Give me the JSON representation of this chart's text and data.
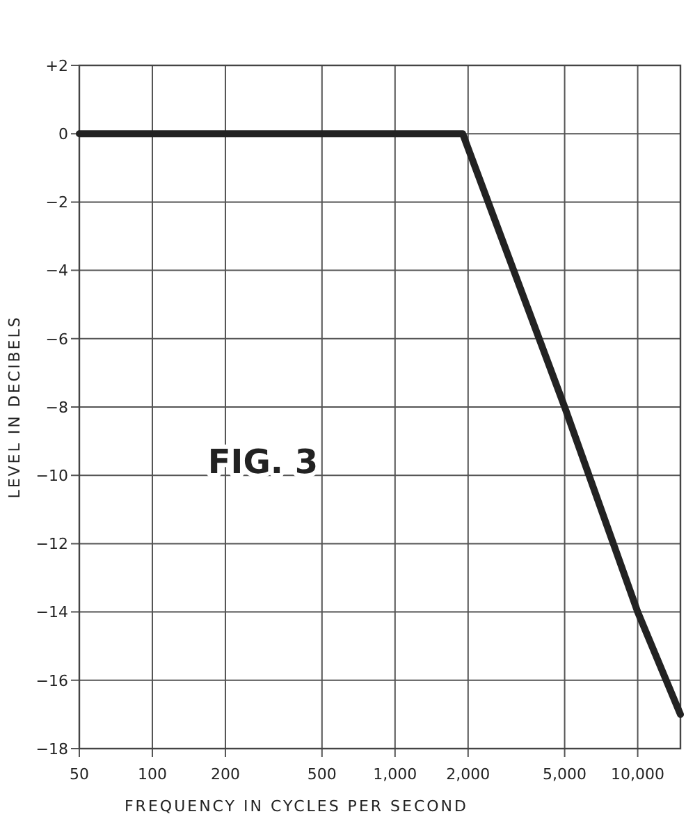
{
  "chart_data": {
    "type": "line",
    "xlabel": "FREQUENCY IN CYCLES PER SECOND",
    "ylabel": "LEVEL IN DECIBELS",
    "annotations": [
      "FIG. 3"
    ],
    "log": "x",
    "grid": true,
    "marker": "none",
    "line_style": "solid",
    "xlim": [
      50,
      15000
    ],
    "ylim": [
      -18,
      2
    ],
    "xticks": [
      50,
      100,
      200,
      500,
      {
        "value": 1000,
        "label": "1,000"
      },
      {
        "value": 2000,
        "label": "2,000"
      },
      {
        "value": 5000,
        "label": "5,000"
      },
      {
        "value": 10000,
        "label": "10,000"
      }
    ],
    "yticks": [
      {
        "value": 2,
        "label": "+2"
      },
      0,
      {
        "value": -2,
        "label": "−2"
      },
      {
        "value": -4,
        "label": "−4"
      },
      {
        "value": -6,
        "label": "−6"
      },
      {
        "value": -8,
        "label": "−8"
      },
      {
        "value": -10,
        "label": "−10"
      },
      {
        "value": -12,
        "label": "−12"
      },
      {
        "value": -14,
        "label": "−14"
      },
      {
        "value": -16,
        "label": "−16"
      },
      {
        "value": -18,
        "label": "−18"
      }
    ],
    "series": [
      {
        "color": "#222222",
        "x": [
          50,
          1900,
          5000,
          10000,
          15000
        ],
        "values": [
          0,
          0,
          -8,
          -14,
          -17
        ]
      }
    ]
  }
}
